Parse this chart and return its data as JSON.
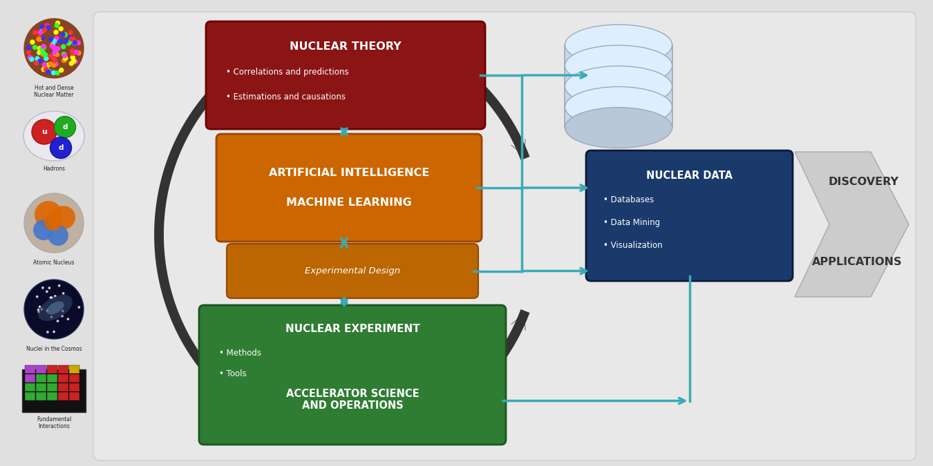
{
  "bg_color": "#e0e0e0",
  "main_bg": "#e8e8e8",
  "nuclear_theory_color": "#8B1515",
  "ai_ml_color": "#CC6600",
  "exp_design_color": "#CC7722",
  "nuclear_exp_color": "#2E7D32",
  "nuclear_data_color": "#1A3A6B",
  "dark_arrow_color": "#333333",
  "teal_color": "#3AABB5",
  "nuclear_theory_title": "NUCLEAR THEORY",
  "nuclear_theory_bullets": [
    "Correlations and predictions",
    "Estimations and causations"
  ],
  "ai_ml_line1": "ARTIFICIAL INTELLIGENCE",
  "ai_ml_line2": "MACHINE LEARNING",
  "exp_design_title": "Experimental Design",
  "nuclear_exp_title": "NUCLEAR EXPERIMENT",
  "nuclear_exp_bullets": [
    "Methods",
    "Tools"
  ],
  "accel_title": "ACCELERATOR SCIENCE\nAND OPERATIONS",
  "nuclear_data_title": "NUCLEAR DATA",
  "nuclear_data_bullets": [
    "Databases",
    "Data Mining",
    "Visualization"
  ],
  "discovery_text": "DISCOVERY",
  "applications_text": "APPLICATIONS",
  "left_labels": [
    "Hot and Dense\nNuclear Matter",
    "Hadrons",
    "Atomic Nucleus",
    "Nuclei in the Cosmos",
    "Fundamental\nInteractions"
  ]
}
